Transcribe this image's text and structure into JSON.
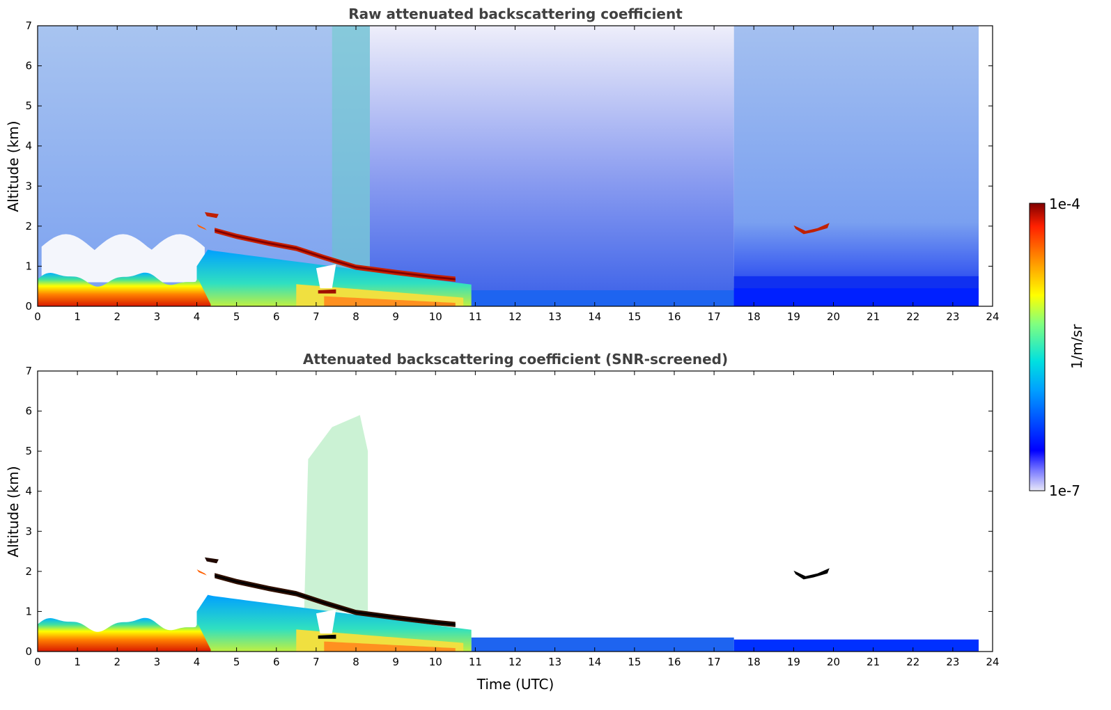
{
  "chart_data": [
    {
      "type": "heatmap",
      "title": "Raw attenuated backscattering coefficient",
      "xlabel": "",
      "ylabel": "Altitude (km)",
      "xlim": [
        0,
        24
      ],
      "ylim": [
        0,
        7
      ],
      "x_ticks": [
        "0",
        "1",
        "2",
        "3",
        "4",
        "5",
        "6",
        "7",
        "8",
        "9",
        "10",
        "11",
        "12",
        "13",
        "14",
        "15",
        "16",
        "17",
        "18",
        "19",
        "20",
        "21",
        "22",
        "23",
        "24"
      ],
      "y_ticks": [
        "0",
        "1",
        "2",
        "3",
        "4",
        "5",
        "6",
        "7"
      ],
      "grid": false,
      "features": [
        {
          "feature": "boundary layer aerosol",
          "time": [
            0,
            4.3
          ],
          "altitude_top": [
            0.6,
            0.9
          ],
          "level": "high"
        },
        {
          "feature": "residual/aerosol layer",
          "time": [
            4.3,
            10.9
          ],
          "altitude_top": [
            1.0,
            0.4
          ],
          "level": "medium"
        },
        {
          "feature": "cloud layer (descending)",
          "time": [
            4.5,
            10.5
          ],
          "altitude": [
            1.8,
            0.7
          ],
          "level": "saturated"
        },
        {
          "feature": "cloud",
          "time": [
            19.0,
            19.9
          ],
          "altitude": [
            1.9,
            2.0
          ],
          "level": "saturated"
        },
        {
          "feature": "noisy background, daytime",
          "time": [
            8.3,
            17.5
          ],
          "altitude": [
            0.5,
            7
          ],
          "level": "low"
        },
        {
          "feature": "near-ground layer",
          "time": [
            10.9,
            23.6
          ],
          "altitude_top": [
            0.3,
            0.4
          ],
          "level": "low-medium"
        }
      ]
    },
    {
      "type": "heatmap",
      "title": "Attenuated backscattering coefficient (SNR-screened)",
      "xlabel": "Time (UTC)",
      "ylabel": "Altitude (km)",
      "xlim": [
        0,
        24
      ],
      "ylim": [
        0,
        7
      ],
      "x_ticks": [
        "0",
        "1",
        "2",
        "3",
        "4",
        "5",
        "6",
        "7",
        "8",
        "9",
        "10",
        "11",
        "12",
        "13",
        "14",
        "15",
        "16",
        "17",
        "18",
        "19",
        "20",
        "21",
        "22",
        "23",
        "24"
      ],
      "y_ticks": [
        "0",
        "1",
        "2",
        "3",
        "4",
        "5",
        "6",
        "7"
      ],
      "grid": false,
      "features": [
        {
          "feature": "boundary layer aerosol",
          "time": [
            0,
            4.3
          ],
          "altitude_top": [
            0.6,
            0.9
          ],
          "level": "high"
        },
        {
          "feature": "cloud layer (descending)",
          "time": [
            4.5,
            10.5
          ],
          "altitude": [
            1.8,
            0.7
          ],
          "level": "saturated"
        },
        {
          "feature": "sparse aerosol plume",
          "time": [
            6.7,
            8.3
          ],
          "altitude": [
            1.0,
            6.0
          ],
          "level": "medium"
        },
        {
          "feature": "cloud",
          "time": [
            19.0,
            19.9
          ],
          "altitude": [
            1.9,
            2.0
          ],
          "level": "saturated"
        },
        {
          "feature": "near-ground layer",
          "time": [
            10.9,
            23.6
          ],
          "altitude_top": [
            0.3,
            0.35
          ],
          "level": "low-medium"
        }
      ]
    }
  ],
  "colorbar": {
    "label": "1/m/sr",
    "max_label": "1e-4",
    "min_label": "1e-7",
    "scale": "log",
    "range": [
      1e-07,
      0.0001
    ],
    "colors": [
      "#e8e8f8",
      "#0000ff",
      "#00c8ff",
      "#ffff00",
      "#ff6000",
      "#800000"
    ]
  }
}
